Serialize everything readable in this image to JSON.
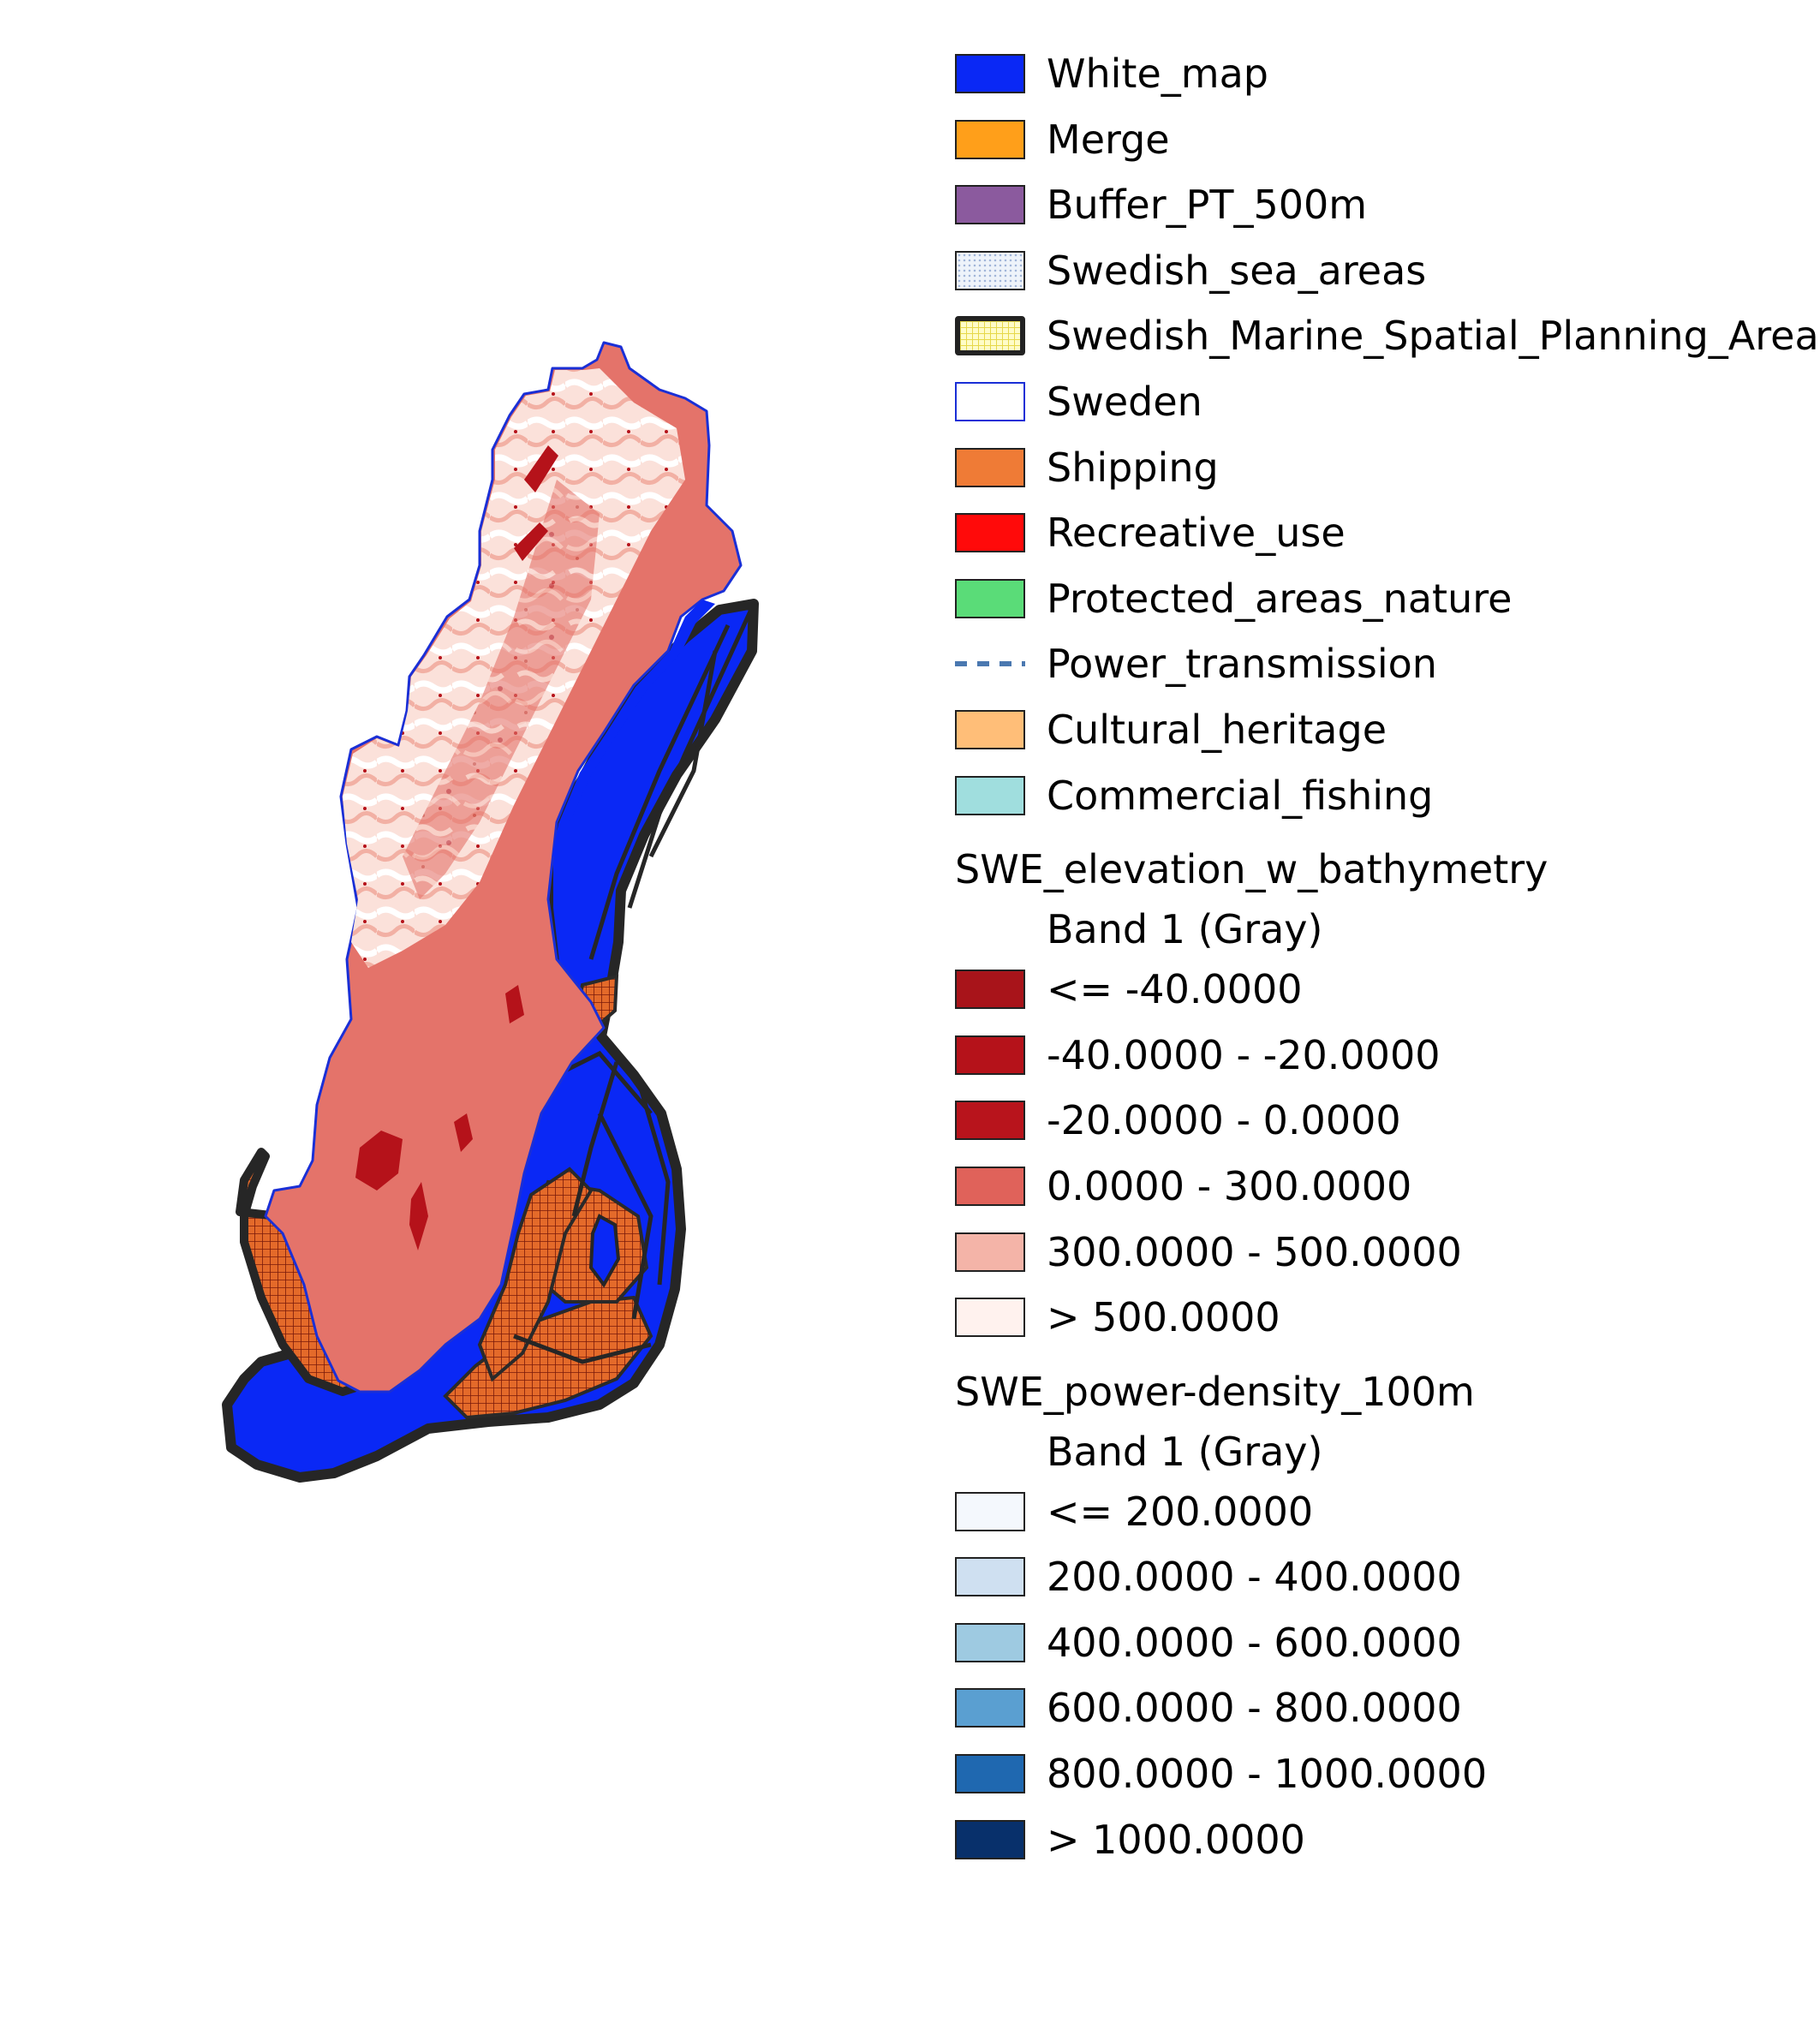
{
  "legend": {
    "layers": [
      {
        "label": "White_map",
        "fill": "#0a28f5",
        "stroke": "#222222",
        "pattern": "solid"
      },
      {
        "label": "Merge",
        "fill": "#ff9f1a",
        "stroke": "#222222",
        "pattern": "solid"
      },
      {
        "label": "Buffer_PT_500m",
        "fill": "#8b5a9e",
        "stroke": "#222222",
        "pattern": "solid"
      },
      {
        "label": "Swedish_sea_areas",
        "fill": "#e8eef8",
        "stroke": "#222222",
        "pattern": "dots"
      },
      {
        "label": "Swedish_Marine_Spatial_Planning_Area",
        "fill": "#fffcc8",
        "stroke": "#222222",
        "pattern": "grid-thick"
      },
      {
        "label": "Sweden",
        "fill": "#ffffff",
        "stroke": "#1a2fd6",
        "pattern": "solid"
      },
      {
        "label": "Shipping",
        "fill": "#ef7b36",
        "stroke": "#222222",
        "pattern": "solid"
      },
      {
        "label": "Recreative_use",
        "fill": "#ff0a0a",
        "stroke": "#222222",
        "pattern": "solid"
      },
      {
        "label": "Protected_areas_nature",
        "fill": "#5adc78",
        "stroke": "#222222",
        "pattern": "solid"
      },
      {
        "label": "Power_transmission",
        "fill": "#4a78b0",
        "stroke": "none",
        "pattern": "dashed-line"
      },
      {
        "label": "Cultural_heritage",
        "fill": "#ffbe78",
        "stroke": "#222222",
        "pattern": "solid"
      },
      {
        "label": "Commercial_fishing",
        "fill": "#a0dede",
        "stroke": "#222222",
        "pattern": "solid"
      }
    ],
    "elevation": {
      "title": "SWE_elevation_w_bathymetry",
      "band": "Band 1 (Gray)",
      "classes": [
        {
          "label": "<= -40.0000",
          "fill": "#a8141a"
        },
        {
          "label": "-40.0000 - -20.0000",
          "fill": "#b5121a"
        },
        {
          "label": "-20.0000 - 0.0000",
          "fill": "#b8141c"
        },
        {
          "label": "0.0000 - 300.0000",
          "fill": "#e0625a"
        },
        {
          "label": "300.0000 - 500.0000",
          "fill": "#f4b4a8"
        },
        {
          "label": "> 500.0000",
          "fill": "#fff2ee"
        }
      ]
    },
    "power_density": {
      "title": "SWE_power-density_100m",
      "band": "Band 1 (Gray)",
      "classes": [
        {
          "label": "<= 200.0000",
          "fill": "#f4f8fd"
        },
        {
          "label": "200.0000 - 400.0000",
          "fill": "#cfe0f1"
        },
        {
          "label": "400.0000 - 600.0000",
          "fill": "#9ecae1"
        },
        {
          "label": "600.0000 - 800.0000",
          "fill": "#5a9fd1"
        },
        {
          "label": "800.0000 - 1000.0000",
          "fill": "#1f68b0"
        },
        {
          "label": "> 1000.0000",
          "fill": "#08306b"
        }
      ]
    }
  }
}
